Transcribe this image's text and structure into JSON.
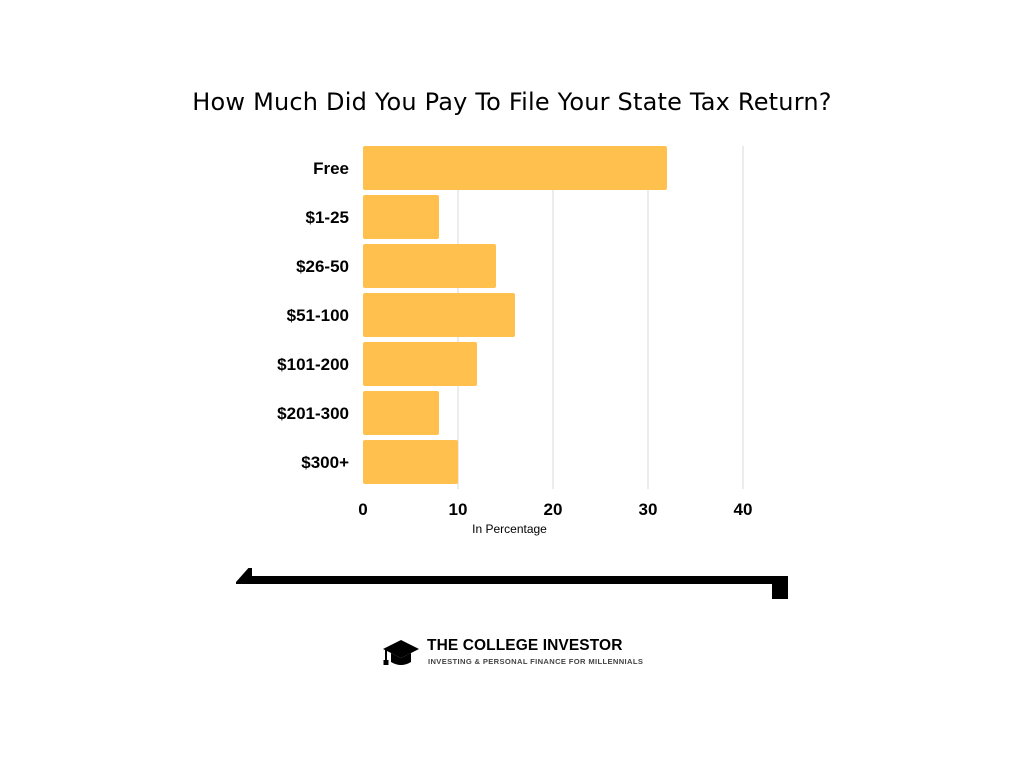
{
  "colors": {
    "bar": "#FFC04D",
    "grid": "#D9D9D9",
    "text": "#000000",
    "arrow": "#000000"
  },
  "chart_data": {
    "type": "bar",
    "orientation": "horizontal",
    "title": "How Much Did You Pay To File Your State Tax Return?",
    "categories": [
      "Free",
      "$1-25",
      "$26-50",
      "$51-100",
      "$101-200",
      "$201-300",
      "$300+"
    ],
    "values": [
      32,
      8,
      14,
      16,
      12,
      8,
      10
    ],
    "xlabel": "In Percentage",
    "ylabel": "",
    "xlim": [
      0,
      40
    ],
    "xticks": [
      0,
      10,
      20,
      30,
      40
    ],
    "grid": true,
    "legend": "none"
  },
  "footer": {
    "decorative_arrow": "double-arrow",
    "brand_icon": "graduation-cap-icon",
    "brand_name": "THE COLLEGE INVESTOR",
    "brand_tagline": "INVESTING & PERSONAL FINANCE FOR MILLENNIALS"
  }
}
